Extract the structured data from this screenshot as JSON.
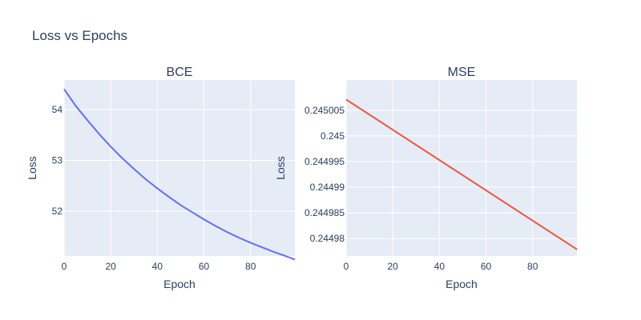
{
  "title": "Loss vs Epochs",
  "colors": {
    "plot_bg": "#e5ecf6",
    "grid": "#ffffff",
    "text": "#2a3f5f"
  },
  "chart_data": [
    {
      "type": "line",
      "title": "BCE",
      "xlabel": "Epoch",
      "ylabel": "Loss",
      "xlim": [
        0,
        99
      ],
      "ylim": [
        51.12,
        54.58
      ],
      "xticks": [
        0,
        20,
        40,
        60,
        80
      ],
      "xtick_labels": [
        "0",
        "20",
        "40",
        "60",
        "80"
      ],
      "yticks": [
        52,
        53,
        54
      ],
      "ytick_labels": [
        "52",
        "53",
        "54"
      ],
      "grid": true,
      "series": [
        {
          "color": "#636efa",
          "x": [
            0,
            5,
            10,
            15,
            20,
            25,
            30,
            35,
            40,
            45,
            50,
            55,
            60,
            65,
            70,
            75,
            80,
            85,
            90,
            95,
            99
          ],
          "y": [
            54.4,
            54.07,
            53.79,
            53.52,
            53.27,
            53.04,
            52.83,
            52.63,
            52.45,
            52.28,
            52.12,
            51.98,
            51.84,
            51.71,
            51.59,
            51.48,
            51.38,
            51.29,
            51.2,
            51.12,
            51.05
          ]
        }
      ]
    },
    {
      "type": "line",
      "title": "MSE",
      "xlabel": "Epoch",
      "ylabel": "Loss",
      "xlim": [
        0,
        99
      ],
      "ylim": [
        0.2449766,
        0.2450109
      ],
      "xticks": [
        0,
        20,
        40,
        60,
        80
      ],
      "xtick_labels": [
        "0",
        "20",
        "40",
        "60",
        "80"
      ],
      "yticks": [
        0.24498,
        0.244985,
        0.24499,
        0.244995,
        0.245,
        0.245005
      ],
      "ytick_labels": [
        "0.24498",
        "0.244985",
        "0.24499",
        "0.244995",
        "0.245",
        "0.245005"
      ],
      "grid": true,
      "series": [
        {
          "color": "#ef553b",
          "x": [
            0,
            99
          ],
          "y": [
            0.2450071,
            0.2449779
          ]
        }
      ]
    }
  ]
}
